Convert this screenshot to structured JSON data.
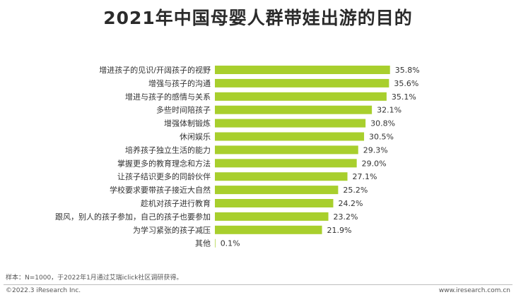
{
  "title": "2021年中国母婴人群带娃出游的目的",
  "note": "样本：N=1000，于2022年1月通过艾瑞iclick社区调研获得。",
  "footer": {
    "copyright": "©2022.3 iResearch Inc.",
    "url": "www.iresearch.com.cn"
  },
  "colors": {
    "bar": "#a8cf2d",
    "text": "#333333"
  },
  "chart_data": {
    "type": "bar",
    "orientation": "horizontal",
    "title": "2021年中国母婴人群带娃出游的目的",
    "unit": "%",
    "xlim": [
      0,
      40
    ],
    "grid": false,
    "categories": [
      "增进孩子的见识/开阔孩子的视野",
      "增强与孩子的沟通",
      "增进与孩子的感情与关系",
      "多些时间陪孩子",
      "增强体制锻炼",
      "休闲娱乐",
      "培养孩子独立生活的能力",
      "掌握更多的教育理念和方法",
      "让孩子结识更多的同龄伙伴",
      "学校要求要带孩子接近大自然",
      "趁机对孩子进行教育",
      "跟风，别人的孩子参加，自己的孩子也要参加",
      "为学习紧张的孩子减压",
      "其他"
    ],
    "values": [
      35.8,
      35.6,
      35.1,
      32.1,
      30.8,
      30.5,
      29.3,
      29.0,
      27.1,
      25.2,
      24.2,
      23.2,
      21.9,
      0.1
    ],
    "data_labels": [
      "35.8%",
      "35.6%",
      "35.1%",
      "32.1%",
      "30.8%",
      "30.5%",
      "29.3%",
      "29.0%",
      "27.1%",
      "25.2%",
      "24.2%",
      "23.2%",
      "21.9%",
      "0.1%"
    ]
  }
}
